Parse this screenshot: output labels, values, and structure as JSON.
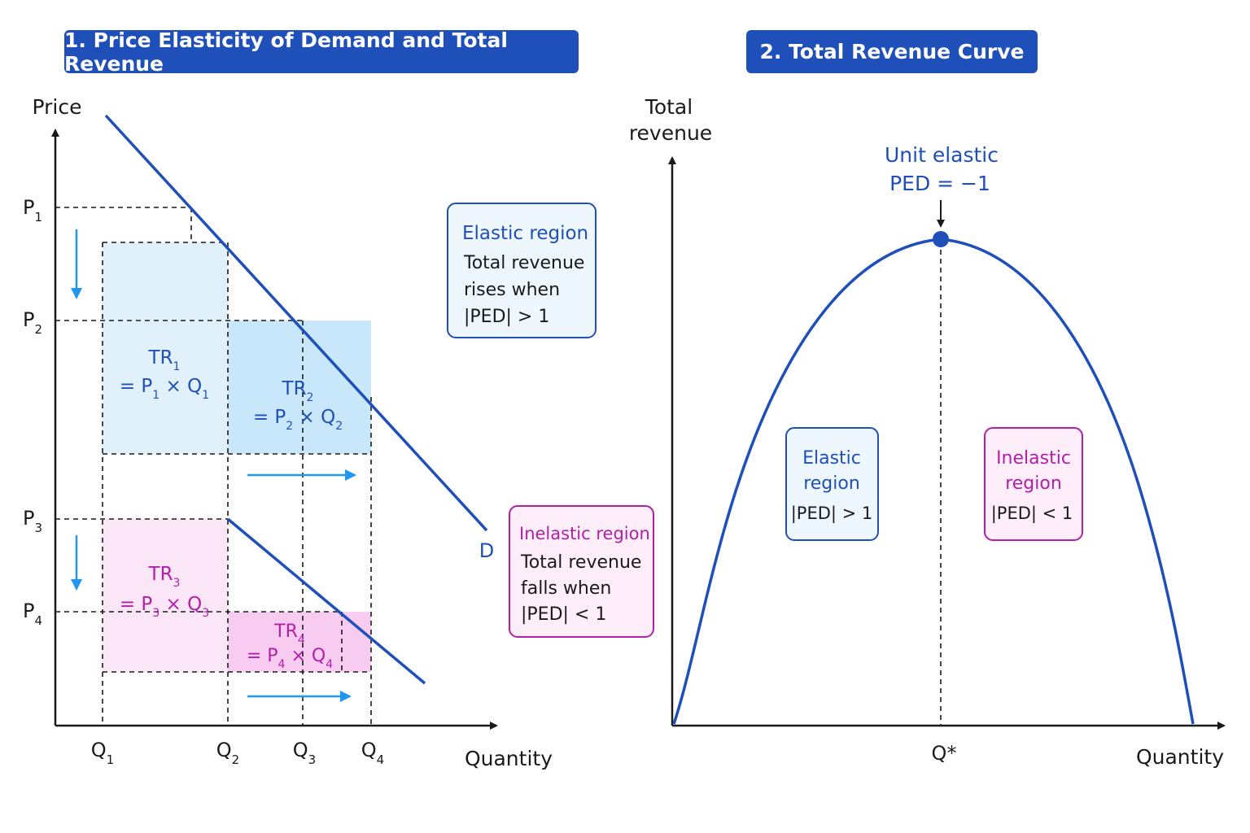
{
  "left_panel": {
    "title": "1. Price Elasticity of Demand and Total Revenue",
    "y_axis_label": "Price",
    "x_axis_label": "Quantity",
    "price_levels": [
      {
        "base": "P",
        "sub": "1"
      },
      {
        "base": "P",
        "sub": "2"
      },
      {
        "base": "P",
        "sub": "3"
      },
      {
        "base": "P",
        "sub": "4"
      }
    ],
    "quantity_levels": [
      {
        "base": "Q",
        "sub": "1"
      },
      {
        "base": "Q",
        "sub": "2"
      },
      {
        "base": "Q",
        "sub": "3"
      },
      {
        "base": "Q",
        "sub": "4"
      }
    ],
    "demand_label": "D",
    "revenue_boxes": [
      {
        "base": "TR",
        "sub": "1",
        "eq_a": "= P",
        "sub_a": "1",
        "eq_b": " × Q",
        "sub_b": "1"
      },
      {
        "base": "TR",
        "sub": "2",
        "eq_a": "= P",
        "sub_a": "2",
        "eq_b": " × Q",
        "sub_b": "2"
      },
      {
        "base": "TR",
        "sub": "3",
        "eq_a": "= P",
        "sub_a": "3",
        "eq_b": " × Q",
        "sub_b": "3"
      },
      {
        "base": "TR",
        "sub": "4",
        "eq_a": "= P",
        "sub_a": "4",
        "eq_b": " × Q",
        "sub_b": "4"
      }
    ],
    "elastic_callout": {
      "title": "Elastic region",
      "lines": [
        "Total revenue",
        "rises when",
        "|PED| > 1"
      ]
    },
    "inelastic_callout": {
      "title": "Inelastic region",
      "lines": [
        "Total revenue",
        "falls when",
        "|PED| < 1"
      ]
    }
  },
  "right_panel": {
    "title": "2. Total Revenue Curve",
    "y_axis_label_lines": [
      "Total",
      "revenue"
    ],
    "x_axis_label": "Quantity",
    "peak_label_lines": [
      "Unit elastic",
      "PED = −1"
    ],
    "peak_quantity_label": "Q*",
    "elastic_box": {
      "lines": [
        "Elastic",
        "region",
        "|PED| > 1"
      ]
    },
    "inelastic_box": {
      "lines": [
        "Inelastic",
        "region",
        "|PED| < 1"
      ]
    }
  },
  "colors": {
    "navy": "#1f4fb8",
    "elastic_fill": "#dceefc",
    "elastic_fill_strong": "#bfe3fa",
    "inelastic_fill": "#fbe3f6",
    "inelastic_fill_strong": "#f6c6ee",
    "magenta": "#b21fa8",
    "arrow_blue": "#2196f3"
  }
}
